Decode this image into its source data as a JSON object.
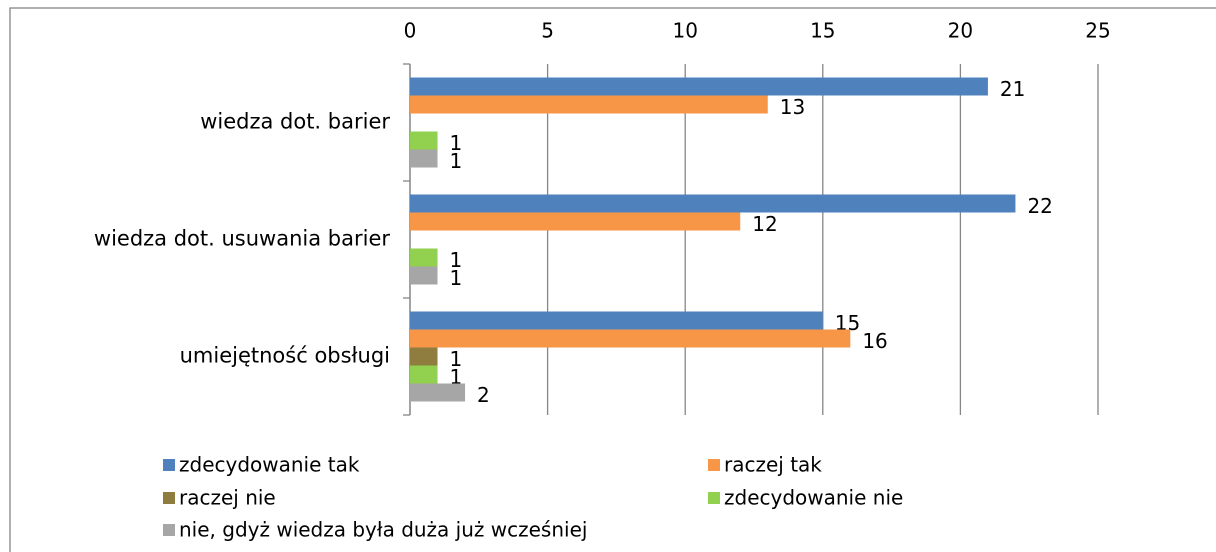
{
  "chart_data": {
    "type": "bar",
    "orientation": "horizontal",
    "categories": [
      "wiedza dot. barier",
      "wiedza dot. usuwania barier",
      "umiejętność obsługi"
    ],
    "series": [
      {
        "name": "zdecydowanie tak",
        "color": "#4f81bd",
        "values": [
          21,
          22,
          15
        ]
      },
      {
        "name": "raczej tak",
        "color": "#f79646",
        "values": [
          13,
          12,
          16
        ]
      },
      {
        "name": "raczej nie",
        "color": "#8e7d3f",
        "values": [
          null,
          null,
          1
        ]
      },
      {
        "name": "zdecydowanie nie",
        "color": "#92d050",
        "values": [
          1,
          1,
          1
        ]
      },
      {
        "name": "nie, gdyż wiedza była duża już wcześniej",
        "color": "#a6a6a6",
        "values": [
          1,
          1,
          2
        ]
      }
    ],
    "xlim": [
      0,
      25
    ],
    "xticks": [
      0,
      5,
      10,
      15,
      20,
      25
    ],
    "grid": true,
    "legend": "bottom"
  }
}
